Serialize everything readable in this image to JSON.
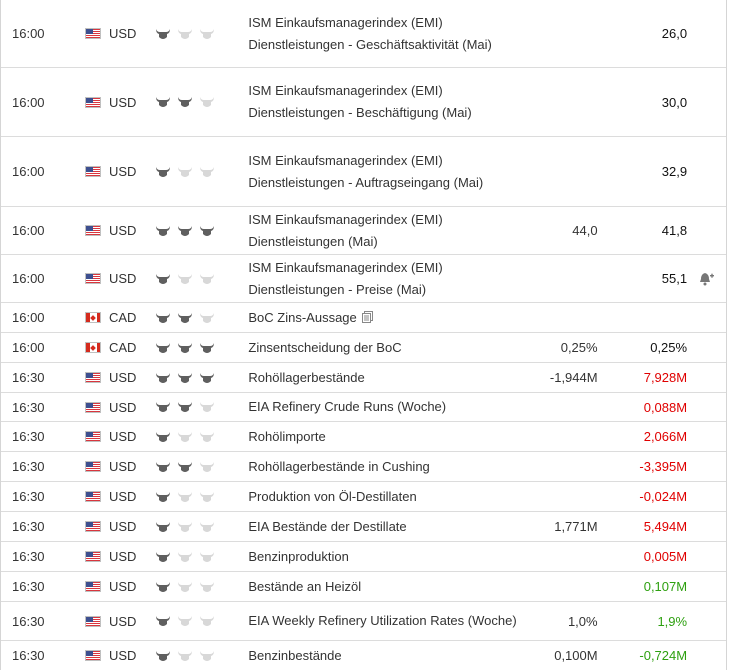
{
  "colors": {
    "red": "#e00000",
    "green": "#2ea010",
    "bull_active": "#5f5f5f",
    "bull_inactive": "#d8d8d8"
  },
  "rows": [
    {
      "time": "16:00",
      "flag": "us-flag-icon",
      "currency": "USD",
      "importance": 1,
      "event": "ISM Einkaufsmanagerindex (EMI) Dienstleistungen - Geschäftsaktivität (Mai)",
      "forecast": "",
      "previous": "26,0",
      "previous_color": "black",
      "lines": 3
    },
    {
      "time": "16:00",
      "flag": "us-flag-icon",
      "currency": "USD",
      "importance": 2,
      "event": "ISM Einkaufsmanagerindex (EMI) Dienstleistungen - Beschäftigung (Mai)",
      "forecast": "",
      "previous": "30,0",
      "previous_color": "black",
      "lines": 3
    },
    {
      "time": "16:00",
      "flag": "us-flag-icon",
      "currency": "USD",
      "importance": 1,
      "event": "ISM Einkaufsmanagerindex (EMI) Dienstleistungen - Auftragseingang (Mai)",
      "forecast": "",
      "previous": "32,9",
      "previous_color": "black",
      "lines": 3
    },
    {
      "time": "16:00",
      "flag": "us-flag-icon",
      "currency": "USD",
      "importance": 3,
      "event": "ISM Einkaufsmanagerindex (EMI) Dienstleistungen (Mai)",
      "forecast": "44,0",
      "previous": "41,8",
      "previous_color": "black",
      "lines": 2
    },
    {
      "time": "16:00",
      "flag": "us-flag-icon",
      "currency": "USD",
      "importance": 1,
      "event": "ISM Einkaufsmanagerindex (EMI) Dienstleistungen - Preise (Mai)",
      "forecast": "",
      "previous": "55,1",
      "previous_color": "black",
      "lines": 2,
      "alert": true
    },
    {
      "time": "16:00",
      "flag": "ca-flag-icon",
      "currency": "CAD",
      "importance": 2,
      "event": "BoC Zins-Aussage",
      "forecast": "",
      "previous": "",
      "previous_color": "black",
      "lines": 1,
      "doc": true
    },
    {
      "time": "16:00",
      "flag": "ca-flag-icon",
      "currency": "CAD",
      "importance": 3,
      "event": "Zinsentscheidung der BoC",
      "forecast": "0,25%",
      "previous": "0,25%",
      "previous_color": "black",
      "lines": 1
    },
    {
      "time": "16:30",
      "flag": "us-flag-icon",
      "currency": "USD",
      "importance": 3,
      "event": "Rohöllagerbestände",
      "forecast": "-1,944M",
      "previous": "7,928M",
      "previous_color": "red",
      "lines": 1
    },
    {
      "time": "16:30",
      "flag": "us-flag-icon",
      "currency": "USD",
      "importance": 2,
      "event": "EIA Refinery Crude Runs (Woche)",
      "forecast": "",
      "previous": "0,088M",
      "previous_color": "red",
      "lines": 1
    },
    {
      "time": "16:30",
      "flag": "us-flag-icon",
      "currency": "USD",
      "importance": 1,
      "event": "Rohölimporte",
      "forecast": "",
      "previous": "2,066M",
      "previous_color": "red",
      "lines": 1
    },
    {
      "time": "16:30",
      "flag": "us-flag-icon",
      "currency": "USD",
      "importance": 2,
      "event": "Rohöllagerbestände in Cushing",
      "forecast": "",
      "previous": "-3,395M",
      "previous_color": "red",
      "lines": 1
    },
    {
      "time": "16:30",
      "flag": "us-flag-icon",
      "currency": "USD",
      "importance": 1,
      "event": "Produktion von Öl-Destillaten",
      "forecast": "",
      "previous": "-0,024M",
      "previous_color": "red",
      "lines": 1
    },
    {
      "time": "16:30",
      "flag": "us-flag-icon",
      "currency": "USD",
      "importance": 1,
      "event": "EIA Bestände der Destillate",
      "forecast": "1,771M",
      "previous": "5,494M",
      "previous_color": "red",
      "lines": 1
    },
    {
      "time": "16:30",
      "flag": "us-flag-icon",
      "currency": "USD",
      "importance": 1,
      "event": "Benzinproduktion",
      "forecast": "",
      "previous": "0,005M",
      "previous_color": "red",
      "lines": 1
    },
    {
      "time": "16:30",
      "flag": "us-flag-icon",
      "currency": "USD",
      "importance": 1,
      "event": "Bestände an Heizöl",
      "forecast": "",
      "previous": "0,107M",
      "previous_color": "green",
      "lines": 1
    },
    {
      "time": "16:30",
      "flag": "us-flag-icon",
      "currency": "USD",
      "importance": 1,
      "event": "EIA Weekly Refinery Utilization Rates (Woche)",
      "forecast": "1,0%",
      "previous": "1,9%",
      "previous_color": "green",
      "lines": 2
    },
    {
      "time": "16:30",
      "flag": "us-flag-icon",
      "currency": "USD",
      "importance": 1,
      "event": "Benzinbestände",
      "forecast": "0,100M",
      "previous": "-0,724M",
      "previous_color": "green",
      "lines": 1
    }
  ]
}
